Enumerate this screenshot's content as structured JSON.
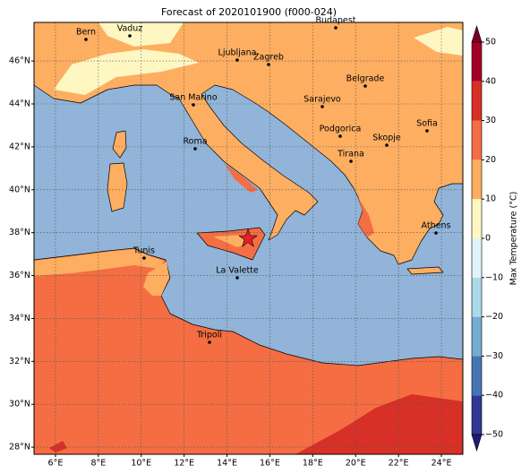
{
  "title": "Forecast of 2020101900 (f000-024)",
  "map": {
    "xlim": [
      5,
      25
    ],
    "ylim": [
      27.67,
      47.8
    ],
    "xticks": [
      {
        "value": 6,
        "label": "6°E"
      },
      {
        "value": 8,
        "label": "8°E"
      },
      {
        "value": 10,
        "label": "10°E"
      },
      {
        "value": 12,
        "label": "12°E"
      },
      {
        "value": 14,
        "label": "14°E"
      },
      {
        "value": 16,
        "label": "16°E"
      },
      {
        "value": 18,
        "label": "18°E"
      },
      {
        "value": 20,
        "label": "20°E"
      },
      {
        "value": 22,
        "label": "22°E"
      },
      {
        "value": 24,
        "label": "24°E"
      }
    ],
    "yticks": [
      {
        "value": 28,
        "label": "28°N"
      },
      {
        "value": 30,
        "label": "30°N"
      },
      {
        "value": 32,
        "label": "32°N"
      },
      {
        "value": 34,
        "label": "34°N"
      },
      {
        "value": 36,
        "label": "36°N"
      },
      {
        "value": 38,
        "label": "38°N"
      },
      {
        "value": 40,
        "label": "40°N"
      },
      {
        "value": 42,
        "label": "42°N"
      },
      {
        "value": 44,
        "label": "44°N"
      },
      {
        "value": 46,
        "label": "46°N"
      }
    ],
    "grid": true,
    "cities": [
      "Bern",
      "Vaduz",
      "Budapest",
      "Ljubljana",
      "Zagreb",
      "Belgrade",
      "San Marino",
      "Sarajevo",
      "Sofia",
      "Podgorica",
      "Skopje",
      "Roma",
      "Tirana",
      "Athens",
      "Tunis",
      "La Valette",
      "Tripoli"
    ]
  },
  "colorbar": {
    "label": "Max Temperature (°C)",
    "ticks": [
      {
        "value": -50,
        "label": "−50"
      },
      {
        "value": -40,
        "label": "−40"
      },
      {
        "value": -30,
        "label": "−30"
      },
      {
        "value": -20,
        "label": "−20"
      },
      {
        "value": -10,
        "label": "−10"
      },
      0,
      10,
      20,
      30,
      40,
      50
    ],
    "colors": [
      "#313695",
      "#4575b4",
      "#74add1",
      "#abd9e9",
      "#e0f3f8",
      "#fff7c2",
      "#fdae61",
      "#f46d43",
      "#d73027",
      "#a50026"
    ],
    "under": "#1c1c74",
    "over": "#7a0022"
  }
}
